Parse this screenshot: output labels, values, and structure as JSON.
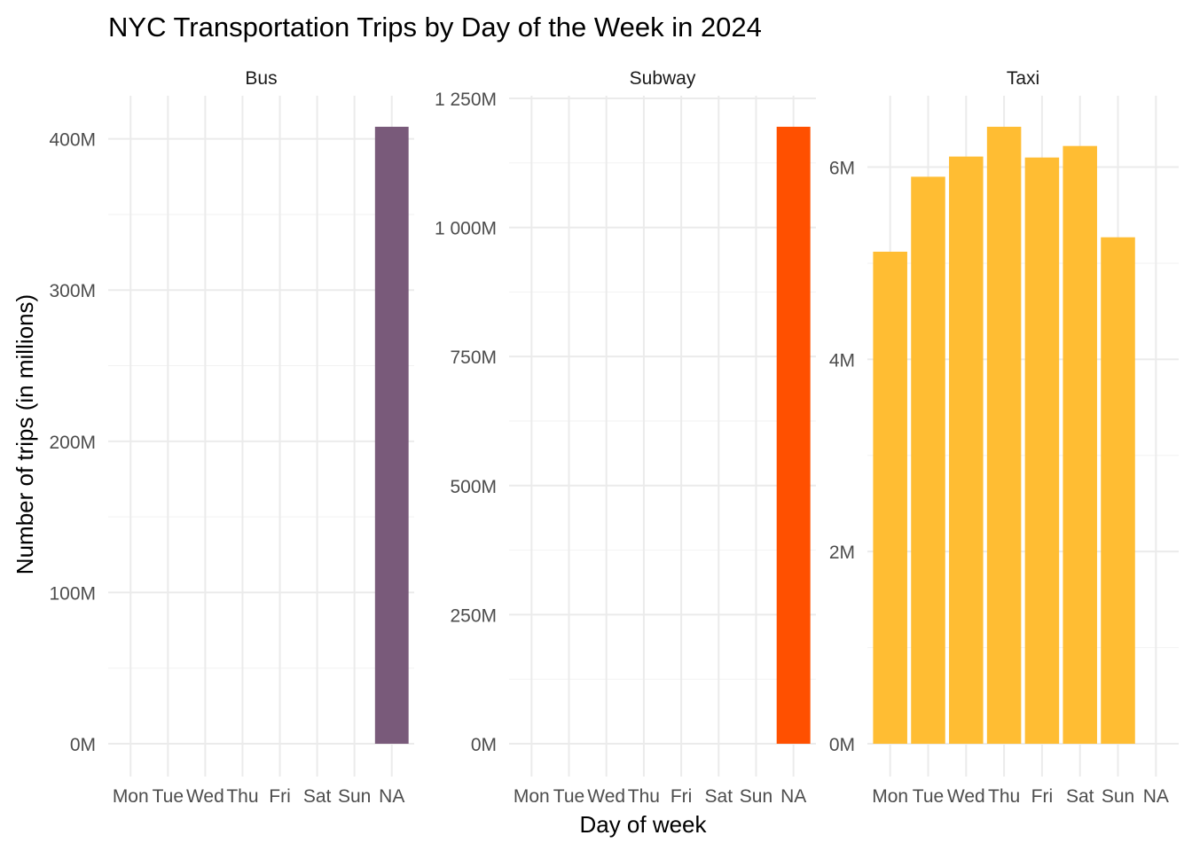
{
  "chart_data": {
    "type": "bar",
    "title": "NYC Transportation Trips by Day of the Week in 2024",
    "xlabel": "Day of week",
    "ylabel": "Number of trips (in millions)",
    "categories": [
      "Mon",
      "Tue",
      "Wed",
      "Thu",
      "Fri",
      "Sat",
      "Sun",
      "NA"
    ],
    "facets": [
      {
        "name": "Bus",
        "color": "#795a7a",
        "values": [
          0,
          0,
          0,
          0,
          0,
          0,
          0,
          408000000
        ],
        "ylim": [
          0,
          408000000
        ],
        "yticks": [
          0,
          100000000,
          200000000,
          300000000,
          400000000
        ],
        "ytick_labels": [
          "0M",
          "100M",
          "200M",
          "300M",
          "400M"
        ]
      },
      {
        "name": "Subway",
        "color": "#ff5000",
        "values": [
          0,
          0,
          0,
          0,
          0,
          0,
          0,
          1195000000
        ],
        "ylim": [
          0,
          1195000000
        ],
        "yticks": [
          0,
          250000000,
          500000000,
          750000000,
          1000000000,
          1250000000
        ],
        "ytick_labels": [
          "0M",
          "250M",
          "500M",
          "750M",
          "1 000M",
          "1 250M"
        ]
      },
      {
        "name": "Taxi",
        "color": "#ffbd33",
        "values": [
          5120000,
          5900000,
          6110000,
          6420000,
          6100000,
          6220000,
          5270000,
          0
        ],
        "ylim": [
          0,
          6420000
        ],
        "yticks": [
          0,
          2000000,
          4000000,
          6000000
        ],
        "ytick_labels": [
          "0M",
          "2M",
          "4M",
          "6M"
        ]
      }
    ],
    "grid": true,
    "legend": "none"
  }
}
